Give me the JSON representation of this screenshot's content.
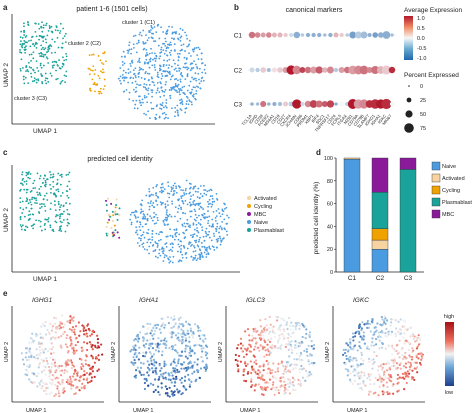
{
  "panel_a": {
    "letter": "a",
    "title": "patient 1-6 (1501 cells)",
    "xlabel": "UMAP 1",
    "ylabel": "UMAP 2",
    "clusters": [
      {
        "label": "cluster 1 (C1)",
        "color": "#4a9be0"
      },
      {
        "label": "cluster 2 (C2)",
        "color": "#f0a200"
      },
      {
        "label": "cluster 3 (C3)",
        "color": "#1aa39a"
      }
    ]
  },
  "panel_b": {
    "letter": "b",
    "title": "canonical markers",
    "clusters": [
      "C1",
      "C2",
      "C3"
    ],
    "genes": [
      "TCL1A",
      "IGHD",
      "CD38",
      "FCER2",
      "MS4A1",
      "CD19",
      "CD27",
      "CXCR4",
      "JCHAIN",
      "CD86",
      "PRDM1",
      "XBP1",
      "IRF4",
      "SDC1",
      "TNFRSF17",
      "CD24",
      "FCRL5",
      "ITGAX",
      "MZB1",
      "CD79A",
      "CD79B",
      "SLAMF7",
      "IGHG1",
      "IGHA1",
      "IGKC",
      "MKI67"
    ],
    "color_legend": {
      "title": "Average Expression",
      "ticks": [
        "1.0",
        "0.5",
        "0.0",
        "-0.5",
        "-1.0"
      ]
    },
    "size_legend": {
      "title": "Percent Expressed",
      "ticks": [
        "0",
        "25",
        "50",
        "75"
      ]
    }
  },
  "panel_c": {
    "letter": "c",
    "title": "predicted cell identity",
    "xlabel": "UMAP 1",
    "ylabel": "UMAP 2",
    "legend": [
      {
        "label": "Activated",
        "color": "#f6d3a0"
      },
      {
        "label": "Cycling",
        "color": "#f0a200"
      },
      {
        "label": "MBC",
        "color": "#8b1a9a"
      },
      {
        "label": "Naive",
        "color": "#4a9be0"
      },
      {
        "label": "Plasmablast",
        "color": "#1aa39a"
      }
    ]
  },
  "panel_d": {
    "letter": "d",
    "ylabel": "predicted cell identity (%)",
    "yticks": [
      "0",
      "20",
      "40",
      "60",
      "80",
      "100"
    ],
    "legend": [
      {
        "label": "Naive",
        "color": "#4a9be0"
      },
      {
        "label": "Activated",
        "color": "#f6d3a0"
      },
      {
        "label": "Cycling",
        "color": "#f0a200"
      },
      {
        "label": "Plasmablast",
        "color": "#1aa39a"
      },
      {
        "label": "MBC",
        "color": "#8b1a9a"
      }
    ]
  },
  "panel_e": {
    "letter": "e",
    "xlabel": "UMAP 1",
    "ylabel": "UMAP 2",
    "genes": [
      "IGHG1",
      "IGHA1",
      "IGLC3",
      "IGKC"
    ],
    "scale_high": "high",
    "scale_low": "low"
  },
  "chart_data": [
    {
      "type": "bar",
      "title": "",
      "xlabel": "",
      "ylabel": "predicted cell identity (%)",
      "ylim": [
        0,
        100
      ],
      "categories": [
        "C1",
        "C2",
        "C3"
      ],
      "category_colors": [
        "#4a9be0",
        "#f0a200",
        "#1aa39a"
      ],
      "stacked": true,
      "series": [
        {
          "name": "Naive",
          "color": "#4a9be0",
          "values": [
            99,
            20,
            0
          ]
        },
        {
          "name": "Activated",
          "color": "#f6d3a0",
          "values": [
            1,
            8,
            0
          ]
        },
        {
          "name": "Cycling",
          "color": "#f0a200",
          "values": [
            0,
            10,
            0
          ]
        },
        {
          "name": "Plasmablast",
          "color": "#1aa39a",
          "values": [
            0,
            32,
            90
          ]
        },
        {
          "name": "MBC",
          "color": "#8b1a9a",
          "values": [
            0,
            30,
            10
          ]
        }
      ]
    },
    {
      "type": "scatter",
      "title": "canonical markers",
      "categories": [
        "TCL1A",
        "IGHD",
        "CD38",
        "FCER2",
        "MS4A1",
        "CD19",
        "CD27",
        "CXCR4",
        "JCHAIN",
        "CD86",
        "PRDM1",
        "XBP1",
        "IRF4",
        "SDC1",
        "TNFRSF17",
        "CD24",
        "FCRL5",
        "ITGAX",
        "MZB1",
        "CD79A",
        "CD79B",
        "SLAMF7",
        "IGHG1",
        "IGHA1",
        "IGKC",
        "MKI67"
      ],
      "series": [
        {
          "name": "C1",
          "avg_expression": [
            0.6,
            0.5,
            0.4,
            0.5,
            0.3,
            0.3,
            0.2,
            -0.2,
            -0.5,
            -0.3,
            -0.5,
            -0.5,
            -0.5,
            -0.4,
            -0.5,
            0.3,
            0.2,
            -0.3,
            -0.6,
            -0.3,
            -0.4,
            -0.5,
            -0.6,
            -0.5,
            -0.5,
            -0.4
          ],
          "pct_expressed": [
            30,
            20,
            15,
            20,
            15,
            15,
            10,
            8,
            30,
            6,
            10,
            10,
            10,
            5,
            10,
            15,
            10,
            6,
            35,
            35,
            35,
            8,
            20,
            20,
            45,
            5
          ]
        },
        {
          "name": "C2",
          "avg_expression": [
            -0.2,
            -0.3,
            0.2,
            -0.4,
            0.1,
            0.2,
            0.4,
            1.0,
            0.5,
            0.8,
            0.6,
            0.4,
            0.7,
            0.3,
            0.5,
            -0.3,
            0.4,
            0.6,
            0.4,
            0.5,
            0.6,
            0.5,
            0.6,
            0.3,
            0.2,
            0.9
          ],
          "pct_expressed": [
            15,
            10,
            20,
            8,
            15,
            20,
            25,
            70,
            55,
            25,
            30,
            35,
            40,
            20,
            35,
            10,
            25,
            30,
            60,
            60,
            60,
            25,
            50,
            45,
            65,
            30
          ]
        },
        {
          "name": "C3",
          "avg_expression": [
            -0.5,
            -0.4,
            0.6,
            -0.5,
            -0.5,
            -0.4,
            0.2,
            -0.3,
            1.0,
            -0.2,
            0.5,
            0.8,
            0.6,
            0.7,
            0.8,
            -0.5,
            0.0,
            -0.3,
            1.0,
            0.4,
            0.5,
            0.9,
            0.9,
            1.0,
            0.9,
            0.0
          ],
          "pct_expressed": [
            5,
            5,
            25,
            5,
            8,
            8,
            15,
            15,
            70,
            8,
            30,
            45,
            35,
            25,
            40,
            5,
            15,
            8,
            80,
            70,
            70,
            45,
            75,
            70,
            85,
            10
          ]
        }
      ],
      "color_scale": {
        "title": "Average Expression",
        "range": [
          -1.0,
          1.0
        ]
      },
      "size_scale": {
        "title": "Percent Expressed",
        "ticks": [
          0,
          25,
          50,
          75
        ]
      }
    }
  ]
}
